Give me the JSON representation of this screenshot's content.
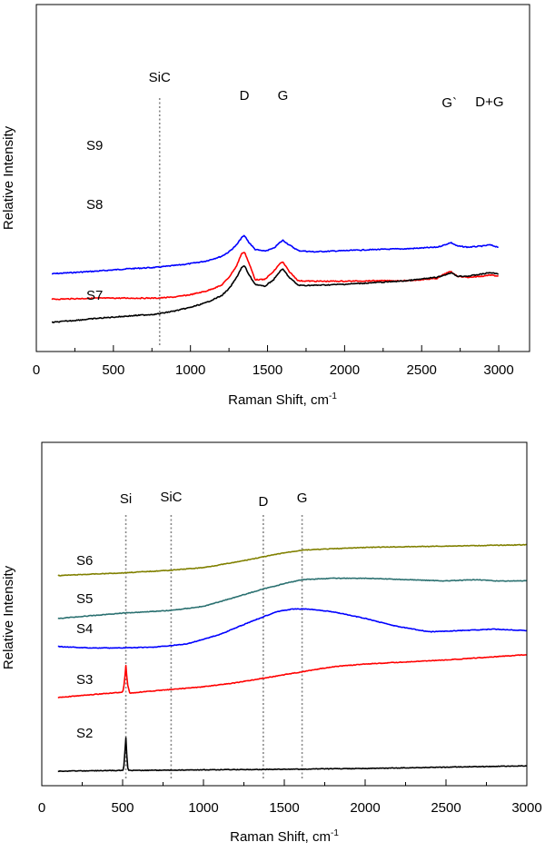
{
  "chart_data": [
    {
      "type": "line",
      "xlabel": "Raman Shift, cm",
      "xlabel_sup": "-1",
      "ylabel": "Relative Intensity",
      "xlim": [
        0,
        3200
      ],
      "xticks": [
        0,
        500,
        1000,
        1500,
        2000,
        2500,
        3000
      ],
      "grid": false,
      "annotations": [
        {
          "text": "SiC",
          "x": 800
        },
        {
          "text": "D",
          "x": 1350
        },
        {
          "text": "G",
          "x": 1600
        },
        {
          "text": "G`",
          "x": 2680
        },
        {
          "text": "D+G",
          "x": 2940
        }
      ],
      "reference_lines": [
        {
          "x": 800,
          "label": "SiC"
        }
      ],
      "series": [
        {
          "name": "S9",
          "color": "#0000ff",
          "offset": 2.1,
          "x": [
            100,
            400,
            600,
            780,
            900,
            1000,
            1100,
            1200,
            1250,
            1300,
            1330,
            1350,
            1380,
            1420,
            1480,
            1540,
            1580,
            1600,
            1640,
            1700,
            1800,
            2000,
            2200,
            2400,
            2600,
            2650,
            2690,
            2730,
            2800,
            2900,
            2940,
            3000
          ],
          "values": [
            0.0,
            0.12,
            0.22,
            0.28,
            0.36,
            0.44,
            0.55,
            0.75,
            0.95,
            1.25,
            1.55,
            1.65,
            1.35,
            1.05,
            0.98,
            1.1,
            1.35,
            1.45,
            1.25,
            1.0,
            0.95,
            1.0,
            1.05,
            1.08,
            1.15,
            1.25,
            1.35,
            1.2,
            1.15,
            1.2,
            1.25,
            1.15
          ]
        },
        {
          "name": "S8",
          "color": "#ff0000",
          "offset": 1.0,
          "x": [
            100,
            400,
            600,
            780,
            900,
            1000,
            1100,
            1200,
            1250,
            1300,
            1330,
            1350,
            1380,
            1420,
            1480,
            1540,
            1580,
            1600,
            1640,
            1700,
            1800,
            2000,
            2200,
            2400,
            2600,
            2650,
            2690,
            2730,
            2800,
            2900,
            2940,
            3000
          ],
          "values": [
            0.0,
            0.05,
            0.05,
            0.05,
            0.1,
            0.2,
            0.35,
            0.6,
            0.95,
            1.45,
            1.95,
            2.05,
            1.55,
            0.85,
            0.85,
            1.2,
            1.55,
            1.6,
            1.2,
            0.8,
            0.78,
            0.78,
            0.8,
            0.8,
            0.9,
            1.1,
            1.2,
            1.0,
            0.95,
            1.0,
            1.05,
            1.0
          ]
        },
        {
          "name": "S7",
          "color": "#000000",
          "offset": 0.0,
          "x": [
            100,
            400,
            600,
            780,
            900,
            1000,
            1100,
            1200,
            1250,
            1300,
            1330,
            1350,
            1380,
            1420,
            1480,
            1540,
            1580,
            1600,
            1640,
            1700,
            1800,
            2000,
            2200,
            2400,
            2600,
            2650,
            2690,
            2730,
            2800,
            2900,
            2940,
            3000
          ],
          "values": [
            0.0,
            0.18,
            0.28,
            0.36,
            0.5,
            0.65,
            0.85,
            1.15,
            1.45,
            1.95,
            2.35,
            2.45,
            2.05,
            1.65,
            1.55,
            1.85,
            2.2,
            2.3,
            1.95,
            1.6,
            1.6,
            1.65,
            1.72,
            1.8,
            1.95,
            2.05,
            2.15,
            2.0,
            2.0,
            2.1,
            2.15,
            2.1
          ]
        }
      ]
    },
    {
      "type": "line",
      "xlabel": "Raman Shift, cm",
      "xlabel_sup": "-1",
      "ylabel": "Relative Intensity",
      "xlim": [
        0,
        3000
      ],
      "xticks": [
        0,
        500,
        1000,
        1500,
        2000,
        2500,
        3000
      ],
      "grid": false,
      "annotations": [
        {
          "text": "Si",
          "x": 520
        },
        {
          "text": "SiC",
          "x": 800
        },
        {
          "text": "D",
          "x": 1370
        },
        {
          "text": "G",
          "x": 1610
        }
      ],
      "reference_lines": [
        {
          "x": 520,
          "label": "Si"
        },
        {
          "x": 800,
          "label": "SiC"
        },
        {
          "x": 1370,
          "label": "D"
        },
        {
          "x": 1610,
          "label": "G"
        }
      ],
      "series": [
        {
          "name": "S6",
          "color": "#808000",
          "x": [
            100,
            500,
            800,
            1000,
            1200,
            1370,
            1500,
            1610,
            1800,
            2000,
            2500,
            3000
          ],
          "values": [
            8.35,
            8.45,
            8.55,
            8.65,
            8.85,
            9.05,
            9.2,
            9.3,
            9.35,
            9.4,
            9.45,
            9.5
          ]
        },
        {
          "name": "S5",
          "color": "#2a7070",
          "x": [
            100,
            500,
            800,
            1000,
            1200,
            1370,
            1500,
            1610,
            1800,
            2000,
            2500,
            2700,
            2800,
            3000
          ],
          "values": [
            6.75,
            6.95,
            7.05,
            7.2,
            7.55,
            7.85,
            8.05,
            8.2,
            8.25,
            8.25,
            8.15,
            8.2,
            8.15,
            8.15
          ]
        },
        {
          "name": "S4",
          "color": "#0000ff",
          "x": [
            100,
            300,
            500,
            700,
            900,
            1100,
            1300,
            1450,
            1550,
            1650,
            1800,
            2000,
            2200,
            2400,
            2600,
            2800,
            3000
          ],
          "values": [
            5.7,
            5.65,
            5.65,
            5.68,
            5.8,
            6.15,
            6.65,
            7.0,
            7.1,
            7.1,
            7.0,
            6.75,
            6.45,
            6.25,
            6.3,
            6.35,
            6.3
          ]
        },
        {
          "name": "S3",
          "color": "#ff0000",
          "x": [
            100,
            500,
            510,
            520,
            530,
            545,
            600,
            800,
            1000,
            1200,
            1400,
            1600,
            1800,
            2000,
            2500,
            3000
          ],
          "values": [
            3.8,
            4.0,
            4.3,
            5.0,
            4.3,
            3.95,
            4.0,
            4.1,
            4.2,
            4.35,
            4.55,
            4.75,
            4.95,
            5.05,
            5.2,
            5.4
          ]
        },
        {
          "name": "S2",
          "color": "#000000",
          "x": [
            100,
            505,
            512,
            518,
            522,
            528,
            535,
            600,
            1000,
            1500,
            2000,
            2500,
            3000
          ],
          "values": [
            1.05,
            1.08,
            1.5,
            2.3,
            2.3,
            1.3,
            1.08,
            1.08,
            1.1,
            1.12,
            1.15,
            1.2,
            1.25
          ]
        }
      ]
    }
  ]
}
